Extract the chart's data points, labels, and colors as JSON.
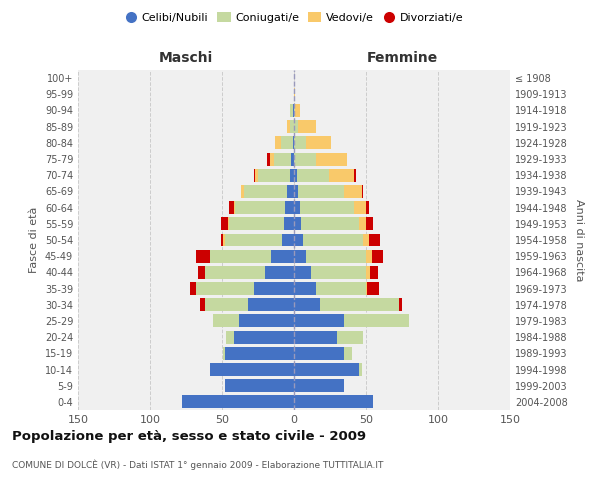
{
  "age_groups": [
    "0-4",
    "5-9",
    "10-14",
    "15-19",
    "20-24",
    "25-29",
    "30-34",
    "35-39",
    "40-44",
    "45-49",
    "50-54",
    "55-59",
    "60-64",
    "65-69",
    "70-74",
    "75-79",
    "80-84",
    "85-89",
    "90-94",
    "95-99",
    "100+"
  ],
  "birth_years": [
    "2004-2008",
    "1999-2003",
    "1994-1998",
    "1989-1993",
    "1984-1988",
    "1979-1983",
    "1974-1978",
    "1969-1973",
    "1964-1968",
    "1959-1963",
    "1954-1958",
    "1949-1953",
    "1944-1948",
    "1939-1943",
    "1934-1938",
    "1929-1933",
    "1924-1928",
    "1919-1923",
    "1914-1918",
    "1909-1913",
    "≤ 1908"
  ],
  "maschi": {
    "celibi": [
      78,
      48,
      58,
      48,
      42,
      38,
      32,
      28,
      20,
      16,
      8,
      7,
      6,
      5,
      3,
      2,
      1,
      0,
      1,
      0,
      0
    ],
    "coniugati": [
      0,
      0,
      0,
      1,
      5,
      18,
      30,
      40,
      42,
      42,
      40,
      38,
      35,
      30,
      22,
      12,
      8,
      3,
      2,
      0,
      0
    ],
    "vedovi": [
      0,
      0,
      0,
      0,
      0,
      0,
      0,
      0,
      0,
      0,
      1,
      1,
      1,
      2,
      2,
      3,
      4,
      2,
      0,
      0,
      0
    ],
    "divorziati": [
      0,
      0,
      0,
      0,
      0,
      0,
      3,
      4,
      5,
      10,
      2,
      5,
      3,
      0,
      1,
      2,
      0,
      0,
      0,
      0,
      0
    ]
  },
  "femmine": {
    "nubili": [
      55,
      35,
      45,
      35,
      30,
      35,
      18,
      15,
      12,
      8,
      6,
      5,
      4,
      3,
      2,
      0,
      0,
      0,
      0,
      0,
      0
    ],
    "coniugate": [
      0,
      0,
      2,
      5,
      18,
      45,
      55,
      35,
      38,
      42,
      42,
      40,
      38,
      32,
      22,
      15,
      8,
      3,
      1,
      0,
      0
    ],
    "vedove": [
      0,
      0,
      0,
      0,
      0,
      0,
      0,
      1,
      3,
      4,
      4,
      5,
      8,
      12,
      18,
      22,
      18,
      12,
      3,
      1,
      0
    ],
    "divorziate": [
      0,
      0,
      0,
      0,
      0,
      0,
      2,
      8,
      5,
      8,
      8,
      5,
      2,
      1,
      1,
      0,
      0,
      0,
      0,
      0,
      0
    ]
  },
  "colors": {
    "celibi": "#4472C4",
    "coniugati": "#C5D9A0",
    "vedovi": "#F9C96A",
    "divorziati": "#CC0000"
  },
  "title": "Popolazione per età, sesso e stato civile - 2009",
  "subtitle": "COMUNE DI DOLCÈ (VR) - Dati ISTAT 1° gennaio 2009 - Elaborazione TUTTITALIA.IT",
  "ylabel_left": "Fasce di età",
  "ylabel_right": "Anni di nascita",
  "xlabel_left": "Maschi",
  "xlabel_right": "Femmine",
  "xlim": 150,
  "bg_color": "#ffffff",
  "plot_bg_color": "#f0f0f0"
}
